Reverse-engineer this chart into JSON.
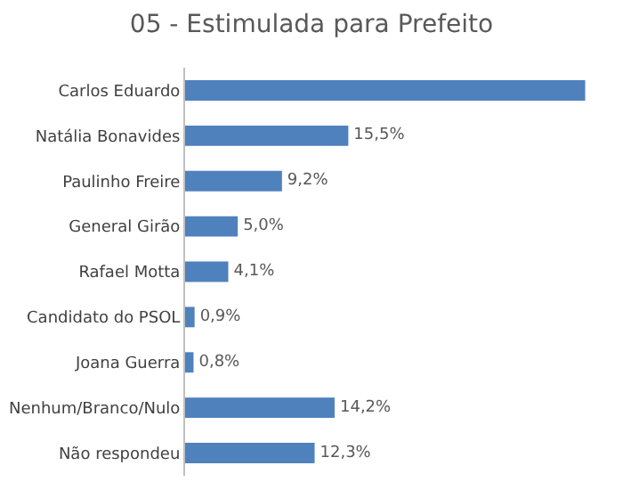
{
  "chart_data": {
    "type": "bar",
    "orientation": "horizontal",
    "title": "05 - Estimulada para Prefeito",
    "categories": [
      "Carlos Eduardo",
      "Natália Bonavides",
      "Paulinho Freire",
      "General Girão",
      "Rafael Motta",
      "Candidato do PSOL",
      "Joana Guerra",
      "Nenhum/Branco/Nulo",
      "Não respondeu"
    ],
    "values": [
      38.0,
      15.5,
      9.2,
      5.0,
      4.1,
      0.9,
      0.8,
      14.2,
      12.3
    ],
    "value_labels": [
      null,
      "15,5%",
      "9,2%",
      "5,0%",
      "4,1%",
      "0,9%",
      "0,8%",
      "14,2%",
      "12,3%"
    ],
    "color": "#4f81bd"
  }
}
